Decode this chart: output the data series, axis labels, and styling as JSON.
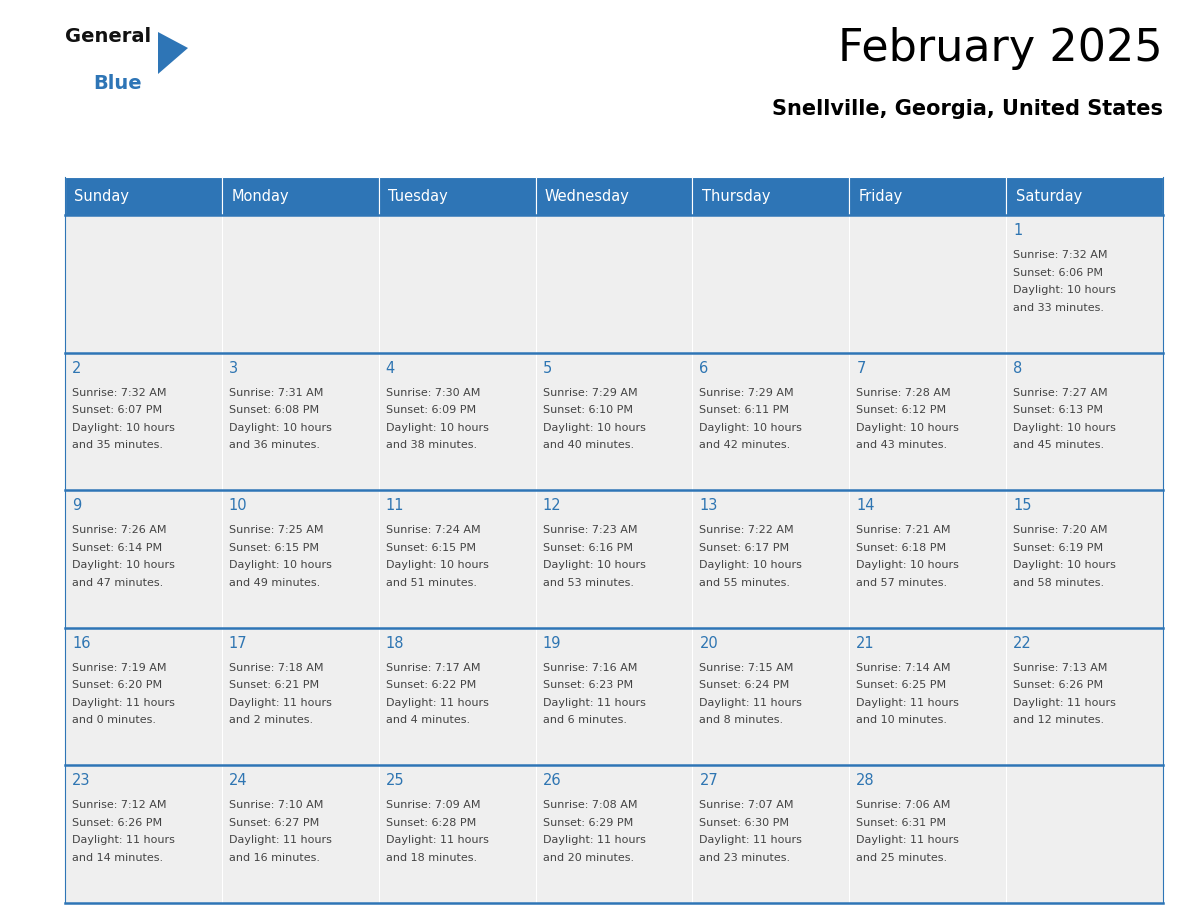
{
  "title": "February 2025",
  "subtitle": "Snellville, Georgia, United States",
  "header_bg": "#2E75B6",
  "header_text": "#FFFFFF",
  "day_names": [
    "Sunday",
    "Monday",
    "Tuesday",
    "Wednesday",
    "Thursday",
    "Friday",
    "Saturday"
  ],
  "cell_bg": "#EFEFEF",
  "separator_color": "#2E75B6",
  "date_color": "#2E75B2",
  "info_color": "#444444",
  "calendar": [
    [
      {
        "day": null
      },
      {
        "day": null
      },
      {
        "day": null
      },
      {
        "day": null
      },
      {
        "day": null
      },
      {
        "day": null
      },
      {
        "day": 1,
        "sunrise": "7:32 AM",
        "sunset": "6:06 PM",
        "daylight": "10 hours",
        "daylight2": "and 33 minutes."
      }
    ],
    [
      {
        "day": 2,
        "sunrise": "7:32 AM",
        "sunset": "6:07 PM",
        "daylight": "10 hours",
        "daylight2": "and 35 minutes."
      },
      {
        "day": 3,
        "sunrise": "7:31 AM",
        "sunset": "6:08 PM",
        "daylight": "10 hours",
        "daylight2": "and 36 minutes."
      },
      {
        "day": 4,
        "sunrise": "7:30 AM",
        "sunset": "6:09 PM",
        "daylight": "10 hours",
        "daylight2": "and 38 minutes."
      },
      {
        "day": 5,
        "sunrise": "7:29 AM",
        "sunset": "6:10 PM",
        "daylight": "10 hours",
        "daylight2": "and 40 minutes."
      },
      {
        "day": 6,
        "sunrise": "7:29 AM",
        "sunset": "6:11 PM",
        "daylight": "10 hours",
        "daylight2": "and 42 minutes."
      },
      {
        "day": 7,
        "sunrise": "7:28 AM",
        "sunset": "6:12 PM",
        "daylight": "10 hours",
        "daylight2": "and 43 minutes."
      },
      {
        "day": 8,
        "sunrise": "7:27 AM",
        "sunset": "6:13 PM",
        "daylight": "10 hours",
        "daylight2": "and 45 minutes."
      }
    ],
    [
      {
        "day": 9,
        "sunrise": "7:26 AM",
        "sunset": "6:14 PM",
        "daylight": "10 hours",
        "daylight2": "and 47 minutes."
      },
      {
        "day": 10,
        "sunrise": "7:25 AM",
        "sunset": "6:15 PM",
        "daylight": "10 hours",
        "daylight2": "and 49 minutes."
      },
      {
        "day": 11,
        "sunrise": "7:24 AM",
        "sunset": "6:15 PM",
        "daylight": "10 hours",
        "daylight2": "and 51 minutes."
      },
      {
        "day": 12,
        "sunrise": "7:23 AM",
        "sunset": "6:16 PM",
        "daylight": "10 hours",
        "daylight2": "and 53 minutes."
      },
      {
        "day": 13,
        "sunrise": "7:22 AM",
        "sunset": "6:17 PM",
        "daylight": "10 hours",
        "daylight2": "and 55 minutes."
      },
      {
        "day": 14,
        "sunrise": "7:21 AM",
        "sunset": "6:18 PM",
        "daylight": "10 hours",
        "daylight2": "and 57 minutes."
      },
      {
        "day": 15,
        "sunrise": "7:20 AM",
        "sunset": "6:19 PM",
        "daylight": "10 hours",
        "daylight2": "and 58 minutes."
      }
    ],
    [
      {
        "day": 16,
        "sunrise": "7:19 AM",
        "sunset": "6:20 PM",
        "daylight": "11 hours",
        "daylight2": "and 0 minutes."
      },
      {
        "day": 17,
        "sunrise": "7:18 AM",
        "sunset": "6:21 PM",
        "daylight": "11 hours",
        "daylight2": "and 2 minutes."
      },
      {
        "day": 18,
        "sunrise": "7:17 AM",
        "sunset": "6:22 PM",
        "daylight": "11 hours",
        "daylight2": "and 4 minutes."
      },
      {
        "day": 19,
        "sunrise": "7:16 AM",
        "sunset": "6:23 PM",
        "daylight": "11 hours",
        "daylight2": "and 6 minutes."
      },
      {
        "day": 20,
        "sunrise": "7:15 AM",
        "sunset": "6:24 PM",
        "daylight": "11 hours",
        "daylight2": "and 8 minutes."
      },
      {
        "day": 21,
        "sunrise": "7:14 AM",
        "sunset": "6:25 PM",
        "daylight": "11 hours",
        "daylight2": "and 10 minutes."
      },
      {
        "day": 22,
        "sunrise": "7:13 AM",
        "sunset": "6:26 PM",
        "daylight": "11 hours",
        "daylight2": "and 12 minutes."
      }
    ],
    [
      {
        "day": 23,
        "sunrise": "7:12 AM",
        "sunset": "6:26 PM",
        "daylight": "11 hours",
        "daylight2": "and 14 minutes."
      },
      {
        "day": 24,
        "sunrise": "7:10 AM",
        "sunset": "6:27 PM",
        "daylight": "11 hours",
        "daylight2": "and 16 minutes."
      },
      {
        "day": 25,
        "sunrise": "7:09 AM",
        "sunset": "6:28 PM",
        "daylight": "11 hours",
        "daylight2": "and 18 minutes."
      },
      {
        "day": 26,
        "sunrise": "7:08 AM",
        "sunset": "6:29 PM",
        "daylight": "11 hours",
        "daylight2": "and 20 minutes."
      },
      {
        "day": 27,
        "sunrise": "7:07 AM",
        "sunset": "6:30 PM",
        "daylight": "11 hours",
        "daylight2": "and 23 minutes."
      },
      {
        "day": 28,
        "sunrise": "7:06 AM",
        "sunset": "6:31 PM",
        "daylight": "11 hours",
        "daylight2": "and 25 minutes."
      },
      {
        "day": null
      }
    ]
  ],
  "logo_general_color": "#111111",
  "logo_blue_color": "#2E75B6",
  "logo_triangle_color": "#2E75B6",
  "fig_width": 11.88,
  "fig_height": 9.18,
  "dpi": 100
}
